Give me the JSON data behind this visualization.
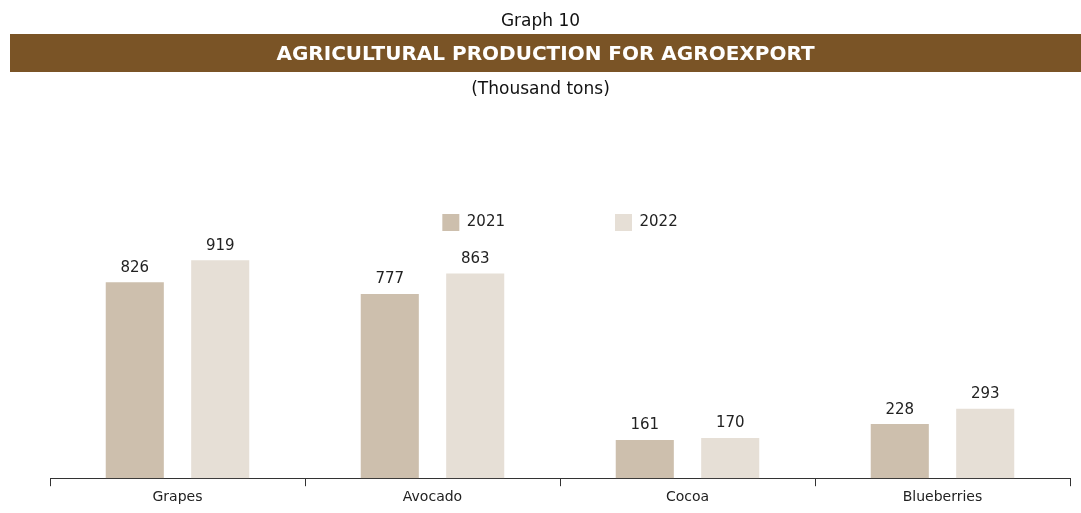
{
  "chart_data": {
    "type": "bar",
    "title": "AGRICULTURAL PRODUCTION FOR AGROEXPORT",
    "subtitle": "(Thousand tons)",
    "annotations": [
      "Graph 10"
    ],
    "categories": [
      "Grapes",
      "Avocado",
      "Cocoa",
      "Blueberries"
    ],
    "series": [
      {
        "name": "2021",
        "color": "#cdbfad",
        "values": [
          826,
          777,
          161,
          228
        ]
      },
      {
        "name": "2022",
        "color": "#e6dfd6",
        "values": [
          919,
          863,
          170,
          293
        ]
      }
    ],
    "data_labels": true,
    "grid": false,
    "legend": "top",
    "tick_labels": "x"
  }
}
